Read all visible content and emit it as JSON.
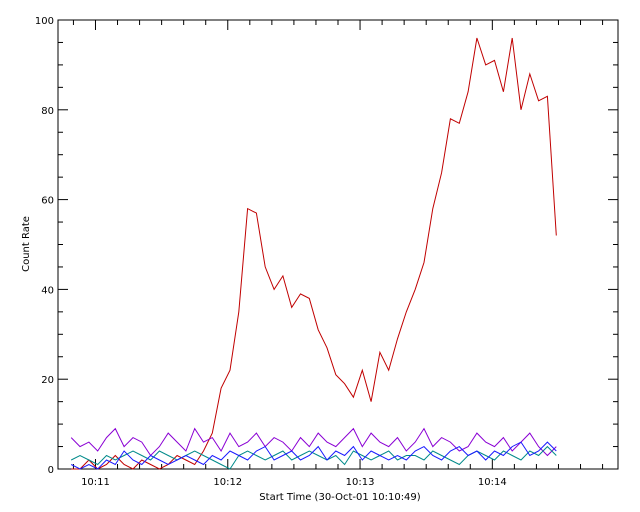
{
  "chart_data": {
    "type": "line",
    "xlabel": "Start Time (30-Oct-01 10:10:49)",
    "ylabel": "Count Rate",
    "ylim": [
      0,
      100
    ],
    "yticks": [
      0,
      20,
      40,
      60,
      80,
      100
    ],
    "xlim_seconds_from_start": [
      -6,
      248
    ],
    "xtick_labels": [
      "10:11",
      "10:12",
      "10:13",
      "10:14"
    ],
    "xticks_seconds_from_start": [
      11,
      71,
      131,
      191
    ],
    "grid": false,
    "colors": {
      "red": "#c00000",
      "purple": "#8a00d4",
      "teal": "#008a8a",
      "blue": "#1a1aff"
    },
    "series": [
      {
        "color_key": "red",
        "x": [
          0,
          4,
          8,
          12,
          16,
          20,
          24,
          28,
          32,
          36,
          40,
          44,
          48,
          52,
          56,
          60,
          64,
          68,
          72,
          76,
          80,
          84,
          88,
          92,
          96,
          100,
          104,
          108,
          112,
          116,
          120,
          124,
          128,
          132,
          136,
          140,
          144,
          148,
          152,
          156,
          160,
          164,
          168,
          172,
          176,
          180,
          184,
          188,
          192,
          196,
          200,
          204,
          208,
          212,
          216,
          220
        ],
        "values": [
          0,
          0,
          2,
          0,
          1,
          3,
          1,
          0,
          2,
          1,
          0,
          1,
          3,
          2,
          1,
          4,
          8,
          18,
          22,
          35,
          58,
          57,
          45,
          40,
          43,
          36,
          39,
          38,
          31,
          27,
          21,
          19,
          16,
          22,
          15,
          26,
          22,
          29,
          35,
          40,
          46,
          58,
          66,
          78,
          77,
          84,
          96,
          90,
          91,
          84,
          96,
          80,
          88,
          82,
          83,
          52
        ]
      },
      {
        "color_key": "purple",
        "x": [
          0,
          4,
          8,
          12,
          16,
          20,
          24,
          28,
          32,
          36,
          40,
          44,
          48,
          52,
          56,
          60,
          64,
          68,
          72,
          76,
          80,
          84,
          88,
          92,
          96,
          100,
          104,
          108,
          112,
          116,
          120,
          124,
          128,
          132,
          136,
          140,
          144,
          148,
          152,
          156,
          160,
          164,
          168,
          172,
          176,
          180,
          184,
          188,
          192,
          196,
          200,
          204,
          208,
          212,
          216,
          220
        ],
        "values": [
          7,
          5,
          6,
          4,
          7,
          9,
          5,
          7,
          6,
          3,
          5,
          8,
          6,
          4,
          9,
          6,
          7,
          4,
          8,
          5,
          6,
          8,
          5,
          7,
          6,
          4,
          7,
          5,
          8,
          6,
          5,
          7,
          9,
          5,
          8,
          6,
          5,
          7,
          4,
          6,
          9,
          5,
          7,
          6,
          4,
          5,
          8,
          6,
          5,
          7,
          4,
          6,
          8,
          5,
          3,
          5
        ]
      },
      {
        "color_key": "teal",
        "x": [
          0,
          4,
          8,
          12,
          16,
          20,
          24,
          28,
          32,
          36,
          40,
          44,
          48,
          52,
          56,
          60,
          64,
          68,
          72,
          76,
          80,
          84,
          88,
          92,
          96,
          100,
          104,
          108,
          112,
          116,
          120,
          124,
          128,
          132,
          136,
          140,
          144,
          148,
          152,
          156,
          160,
          164,
          168,
          172,
          176,
          180,
          184,
          188,
          192,
          196,
          200,
          204,
          208,
          212,
          216,
          220
        ],
        "values": [
          2,
          3,
          2,
          1,
          3,
          2,
          3,
          4,
          3,
          2,
          4,
          3,
          2,
          3,
          4,
          3,
          2,
          1,
          0,
          3,
          4,
          3,
          2,
          3,
          4,
          2,
          3,
          4,
          3,
          2,
          3,
          1,
          4,
          3,
          2,
          3,
          4,
          2,
          3,
          3,
          2,
          4,
          3,
          2,
          1,
          3,
          4,
          3,
          2,
          4,
          3,
          2,
          4,
          3,
          5,
          3
        ]
      },
      {
        "color_key": "blue",
        "x": [
          0,
          4,
          8,
          12,
          16,
          20,
          24,
          28,
          32,
          36,
          40,
          44,
          48,
          52,
          56,
          60,
          64,
          68,
          72,
          76,
          80,
          84,
          88,
          92,
          96,
          100,
          104,
          108,
          112,
          116,
          120,
          124,
          128,
          132,
          136,
          140,
          144,
          148,
          152,
          156,
          160,
          164,
          168,
          172,
          176,
          180,
          184,
          188,
          192,
          196,
          200,
          204,
          208,
          212,
          216,
          220
        ],
        "values": [
          1,
          0,
          1,
          0,
          2,
          1,
          4,
          2,
          1,
          3,
          2,
          1,
          2,
          3,
          2,
          1,
          3,
          2,
          4,
          3,
          2,
          4,
          5,
          2,
          3,
          4,
          2,
          3,
          5,
          2,
          4,
          3,
          5,
          2,
          4,
          3,
          2,
          3,
          2,
          4,
          5,
          3,
          2,
          4,
          5,
          3,
          4,
          2,
          4,
          3,
          5,
          6,
          3,
          4,
          6,
          4
        ]
      }
    ]
  }
}
